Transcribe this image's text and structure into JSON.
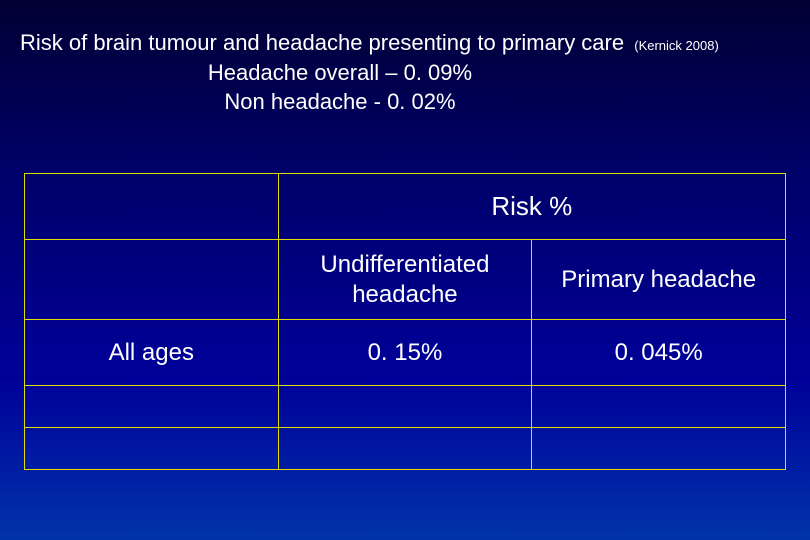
{
  "title": {
    "main": "Risk of brain tumour and headache presenting to primary care",
    "citation": "(Kernick 2008)",
    "sub1": "Headache overall – 0. 09%",
    "sub2": "Non headache    -   0. 02%"
  },
  "table": {
    "header_span": "Risk %",
    "col2_label": "Undifferentiated headache",
    "col3_label": "Primary headache",
    "row_label": "All ages",
    "val1": "0. 15%",
    "val2": "0. 045%",
    "border_color": "#dede00"
  },
  "colors": {
    "background_top": "#000033",
    "background_bottom": "#0033aa",
    "text": "#ffffff"
  }
}
